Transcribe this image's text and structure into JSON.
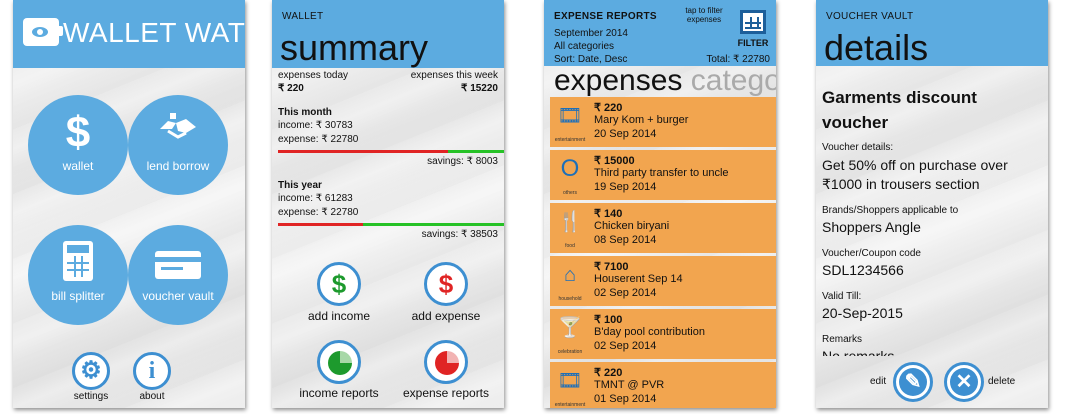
{
  "colors": {
    "accent": "#5cabe0",
    "icon_blue": "#3d8fd1",
    "expense_tile": "#f2a54f",
    "bar_red": "#e02424",
    "bar_green": "#26c226"
  },
  "home": {
    "app_title": "WALLET WATCH",
    "tiles": [
      {
        "label": "wallet",
        "icon": "dollar-icon"
      },
      {
        "label": "lend borrow",
        "icon": "handshake-icon"
      },
      {
        "label": "bill splitter",
        "icon": "calculator-icon"
      },
      {
        "label": "voucher vault",
        "icon": "card-icon"
      }
    ],
    "settings_label": "settings",
    "about_label": "about"
  },
  "summary": {
    "app_caption": "WALLET",
    "page_title": "summary",
    "expenses_today_label": "expenses today",
    "expenses_today_value": "₹ 220",
    "expenses_week_label": "expenses this week",
    "expenses_week_value": "₹ 15220",
    "month": {
      "heading": "This month",
      "income": "income:  ₹ 30783",
      "expense": "expense: ₹ 22780",
      "savings": "savings: ₹ 8003",
      "expense_ratio": 0.74
    },
    "year": {
      "heading": "This year",
      "income": "income:  ₹ 61283",
      "expense": "expense: ₹ 22780",
      "savings": "savings: ₹ 38503",
      "expense_ratio": 0.37
    },
    "actions": [
      {
        "label": "add income",
        "icon": "income-dollar-icon"
      },
      {
        "label": "add expense",
        "icon": "expense-dollar-icon"
      },
      {
        "label": "income reports",
        "icon": "income-pie-icon"
      },
      {
        "label": "expense reports",
        "icon": "expense-pie-icon"
      }
    ]
  },
  "reports": {
    "app_caption": "EXPENSE REPORTS",
    "period": "September 2014",
    "categories": "All categories",
    "sort": "Sort: Date, Desc",
    "filter_hint": "tap to filter expenses",
    "filter_label": "FILTER",
    "total": "Total: ₹ 22780",
    "pivot_active": "expenses",
    "pivot_next": "catego",
    "items": [
      {
        "amount": "₹ 220",
        "desc": "Mary Kom + burger",
        "date": "20 Sep 2014",
        "category": "entertainment",
        "icon": "film-icon"
      },
      {
        "amount": "₹ 15000",
        "desc": "Third party transfer to uncle",
        "date": "19 Sep 2014",
        "category": "others",
        "icon": "others-icon"
      },
      {
        "amount": "₹ 140",
        "desc": "Chicken biryani",
        "date": "08 Sep 2014",
        "category": "food",
        "icon": "fork-knife-icon"
      },
      {
        "amount": "₹ 7100",
        "desc": "Houserent Sep 14",
        "date": "02 Sep 2014",
        "category": "household",
        "icon": "house-icon"
      },
      {
        "amount": "₹ 100",
        "desc": "B'day pool contribution",
        "date": "02 Sep 2014",
        "category": "celebration",
        "icon": "cocktail-icon"
      },
      {
        "amount": "₹ 220",
        "desc": "TMNT @ PVR",
        "date": "01 Sep 2014",
        "category": "entertainment",
        "icon": "film-icon"
      }
    ]
  },
  "voucher": {
    "app_caption": "VOUCHER VAULT",
    "page_title": "details",
    "name": "Garments discount voucher",
    "details_label": "Voucher details:",
    "details_value": "Get 50% off on purchase over ₹1000 in trousers section",
    "brands_label": "Brands/Shoppers applicable to",
    "brands_value": "Shoppers Angle",
    "code_label": "Voucher/Coupon code",
    "code_value": "SDL1234566",
    "valid_label": "Valid Till:",
    "valid_value": "20-Sep-2015",
    "remarks_label": "Remarks",
    "remarks_value": "No remarks",
    "edit_label": "edit",
    "delete_label": "delete"
  }
}
